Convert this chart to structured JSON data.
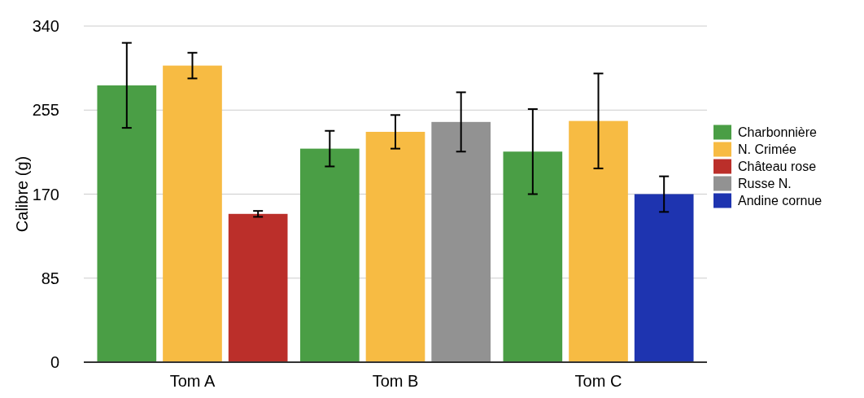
{
  "chart_data": {
    "type": "bar",
    "ylabel": "Calibre (g)",
    "categories": [
      "Tom A",
      "Tom B",
      "Tom C"
    ],
    "series": [
      {
        "name": "Charbonnière",
        "color": "#4a9e45",
        "values": [
          280,
          216,
          213
        ],
        "errors": [
          43,
          18,
          43
        ]
      },
      {
        "name": "N. Crimée",
        "color": "#f7bb43",
        "values": [
          300,
          233,
          244
        ],
        "errors": [
          13,
          17,
          48
        ]
      },
      {
        "name": "Château rose",
        "color": "#bb2f2a",
        "values": [
          150,
          null,
          null
        ],
        "errors": [
          3,
          null,
          null
        ]
      },
      {
        "name": "Russe N.",
        "color": "#929292",
        "values": [
          null,
          243,
          null
        ],
        "errors": [
          null,
          30,
          null
        ]
      },
      {
        "name": "Andine cornue",
        "color": "#1e34b0",
        "values": [
          null,
          null,
          170
        ],
        "errors": [
          null,
          null,
          18
        ]
      }
    ],
    "ylim": [
      0,
      340
    ],
    "yticks": [
      0,
      85,
      170,
      255,
      340
    ],
    "grid": "y",
    "legend": "right"
  }
}
